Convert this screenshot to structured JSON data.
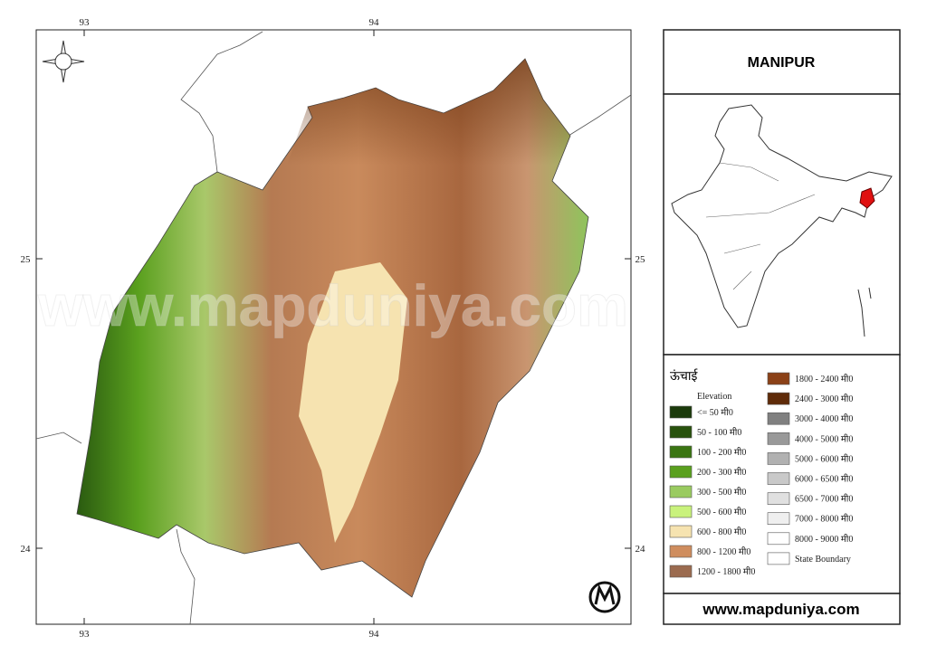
{
  "title": "MANIPUR",
  "longitudes": [
    93,
    94
  ],
  "latitudes": [
    25,
    24
  ],
  "watermark": "www.mapduniya.com",
  "website": "www.mapduniya.com",
  "legend": {
    "heading": "ऊंचाई",
    "subheading": "Elevation",
    "items": [
      {
        "label": "<= 50 मी0",
        "color": "#1b3a0b"
      },
      {
        "label": "50 - 100 मी0",
        "color": "#28520d"
      },
      {
        "label": "100 - 200 मी0",
        "color": "#3a7512"
      },
      {
        "label": "200 - 300 मी0",
        "color": "#5aa01e"
      },
      {
        "label": "300 - 500 मी0",
        "color": "#9acb60"
      },
      {
        "label": "500 - 600 मी0",
        "color": "#c9f27c"
      },
      {
        "label": "600 - 800 मी0",
        "color": "#f6e3b0"
      },
      {
        "label": "800 - 1200 मी0",
        "color": "#cf8d5e"
      },
      {
        "label": "1200 - 1800 मी0",
        "color": "#9b6b4f"
      },
      {
        "label": "1800 - 2400 मी0",
        "color": "#8b4117"
      },
      {
        "label": "2400 - 3000 मी0",
        "color": "#5f2b09"
      },
      {
        "label": "3000 - 4000 मी0",
        "color": "#808080"
      },
      {
        "label": "4000 - 5000 मी0",
        "color": "#999999"
      },
      {
        "label": "5000 - 6000 मी0",
        "color": "#b1b1b1"
      },
      {
        "label": "6000 - 6500 मी0",
        "color": "#c9c9c9"
      },
      {
        "label": "6500 - 7000 मी0",
        "color": "#e0e0e0"
      },
      {
        "label": "7000 - 8000 मी0",
        "color": "#efefef"
      },
      {
        "label": "8000 - 9000 मी0",
        "color": "#ffffff"
      },
      {
        "label": "State Boundary",
        "color": "#ffffff"
      }
    ]
  }
}
